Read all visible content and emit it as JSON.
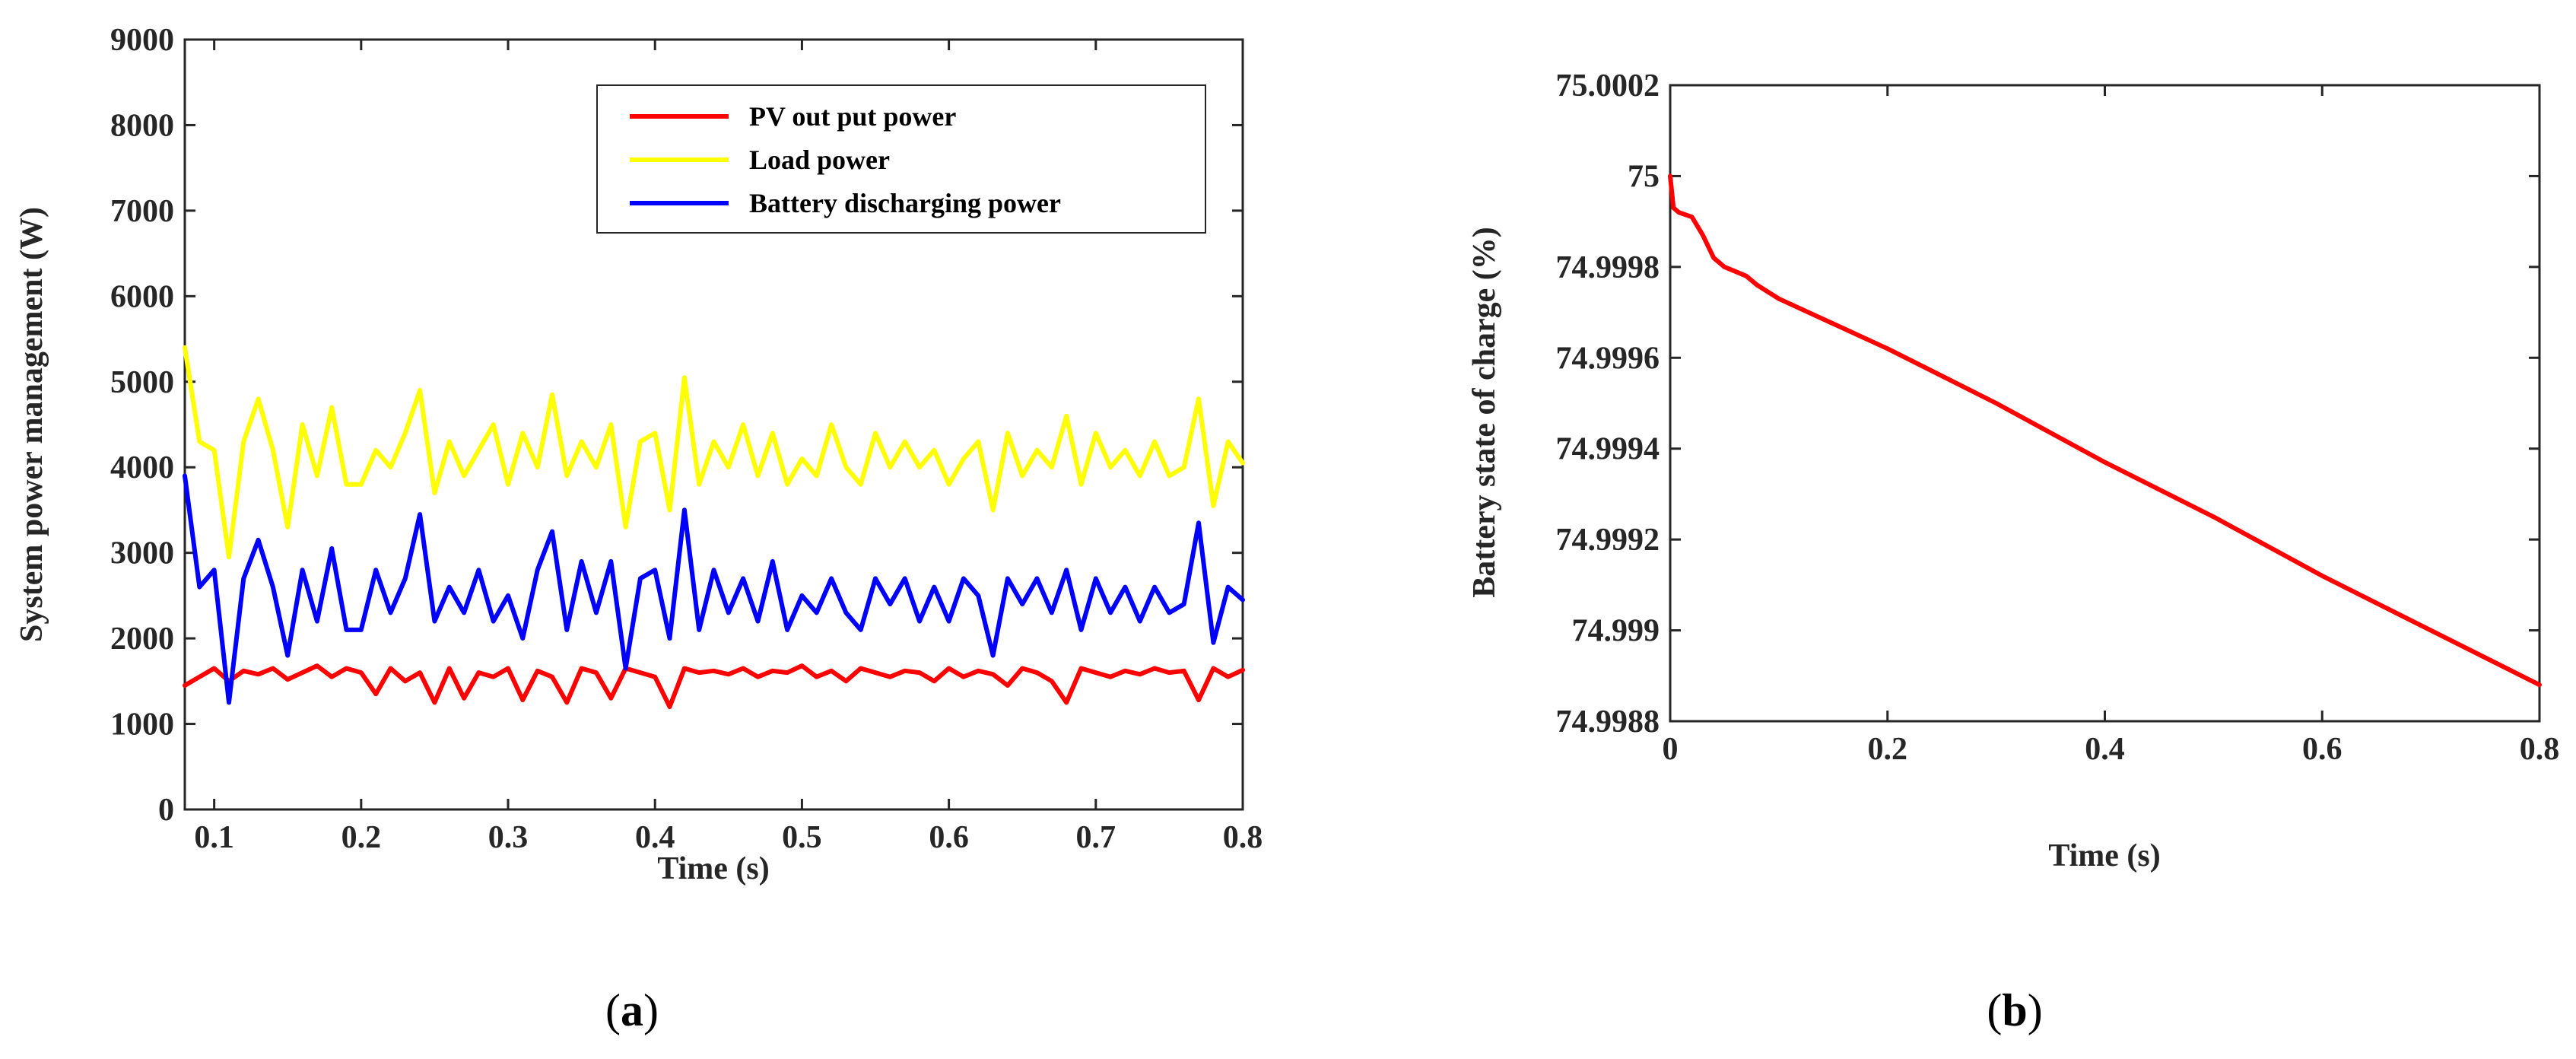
{
  "chart_data": [
    {
      "type": "line",
      "panel": "a",
      "caption_open": "(",
      "caption_letter": "a",
      "caption_close": ")",
      "xlabel": "Time (s)",
      "ylabel": "System power management (W)",
      "xlim": [
        0.08,
        0.8
      ],
      "ylim": [
        0,
        9000
      ],
      "x_ticks": [
        0.1,
        0.2,
        0.3,
        0.4,
        0.5,
        0.6,
        0.7,
        0.8
      ],
      "x_tick_labels": [
        "0.1",
        "0.2",
        "0.3",
        "0.4",
        "0.5",
        "0.6",
        "0.7",
        "0.8"
      ],
      "y_ticks": [
        0,
        1000,
        2000,
        3000,
        4000,
        5000,
        6000,
        7000,
        8000,
        9000
      ],
      "y_tick_labels": [
        "0",
        "1000",
        "2000",
        "3000",
        "4000",
        "5000",
        "6000",
        "7000",
        "8000",
        "9000"
      ],
      "legend_position": "top-right",
      "series": [
        {
          "name": "PV out put power",
          "color": "#ff0000",
          "x": [
            0.08,
            0.09,
            0.1,
            0.11,
            0.12,
            0.13,
            0.14,
            0.15,
            0.16,
            0.17,
            0.18,
            0.19,
            0.2,
            0.21,
            0.22,
            0.23,
            0.24,
            0.25,
            0.26,
            0.27,
            0.28,
            0.29,
            0.3,
            0.31,
            0.32,
            0.33,
            0.34,
            0.35,
            0.36,
            0.37,
            0.38,
            0.39,
            0.4,
            0.41,
            0.42,
            0.43,
            0.44,
            0.45,
            0.46,
            0.47,
            0.48,
            0.49,
            0.5,
            0.51,
            0.52,
            0.53,
            0.54,
            0.55,
            0.56,
            0.57,
            0.58,
            0.59,
            0.6,
            0.61,
            0.62,
            0.63,
            0.64,
            0.65,
            0.66,
            0.67,
            0.68,
            0.69,
            0.7,
            0.71,
            0.72,
            0.73,
            0.74,
            0.75,
            0.76,
            0.77,
            0.78,
            0.79,
            0.8
          ],
          "values": [
            1450,
            1550,
            1650,
            1500,
            1620,
            1580,
            1650,
            1520,
            1600,
            1680,
            1550,
            1650,
            1600,
            1350,
            1650,
            1500,
            1600,
            1250,
            1650,
            1300,
            1600,
            1550,
            1650,
            1280,
            1620,
            1550,
            1250,
            1650,
            1600,
            1300,
            1650,
            1600,
            1550,
            1200,
            1650,
            1600,
            1620,
            1580,
            1650,
            1550,
            1620,
            1600,
            1680,
            1550,
            1620,
            1500,
            1650,
            1600,
            1550,
            1620,
            1600,
            1500,
            1650,
            1550,
            1620,
            1580,
            1450,
            1650,
            1600,
            1500,
            1250,
            1650,
            1600,
            1550,
            1620,
            1580,
            1650,
            1600,
            1620,
            1280,
            1650,
            1550,
            1630
          ]
        },
        {
          "name": "Load power",
          "color": "#ffff00",
          "x": [
            0.08,
            0.09,
            0.1,
            0.11,
            0.12,
            0.13,
            0.14,
            0.15,
            0.16,
            0.17,
            0.18,
            0.19,
            0.2,
            0.21,
            0.22,
            0.23,
            0.24,
            0.25,
            0.26,
            0.27,
            0.28,
            0.29,
            0.3,
            0.31,
            0.32,
            0.33,
            0.34,
            0.35,
            0.36,
            0.37,
            0.38,
            0.39,
            0.4,
            0.41,
            0.42,
            0.43,
            0.44,
            0.45,
            0.46,
            0.47,
            0.48,
            0.49,
            0.5,
            0.51,
            0.52,
            0.53,
            0.54,
            0.55,
            0.56,
            0.57,
            0.58,
            0.59,
            0.6,
            0.61,
            0.62,
            0.63,
            0.64,
            0.65,
            0.66,
            0.67,
            0.68,
            0.69,
            0.7,
            0.71,
            0.72,
            0.73,
            0.74,
            0.75,
            0.76,
            0.77,
            0.78,
            0.79,
            0.8
          ],
          "values": [
            5400,
            4300,
            4200,
            2950,
            4300,
            4800,
            4200,
            3300,
            4500,
            3900,
            4700,
            3800,
            3800,
            4200,
            4000,
            4400,
            4900,
            3700,
            4300,
            3900,
            4200,
            4500,
            3800,
            4400,
            4000,
            4850,
            3900,
            4300,
            4000,
            4500,
            3300,
            4300,
            4400,
            3500,
            5050,
            3800,
            4300,
            4000,
            4500,
            3900,
            4400,
            3800,
            4100,
            3900,
            4500,
            4000,
            3800,
            4400,
            4000,
            4300,
            4000,
            4200,
            3800,
            4100,
            4300,
            3500,
            4400,
            3900,
            4200,
            4000,
            4600,
            3800,
            4400,
            4000,
            4200,
            3900,
            4300,
            3900,
            4000,
            4800,
            3550,
            4300,
            4050
          ]
        },
        {
          "name": "Battery discharging power",
          "color": "#0000ff",
          "x": [
            0.08,
            0.09,
            0.1,
            0.11,
            0.12,
            0.13,
            0.14,
            0.15,
            0.16,
            0.17,
            0.18,
            0.19,
            0.2,
            0.21,
            0.22,
            0.23,
            0.24,
            0.25,
            0.26,
            0.27,
            0.28,
            0.29,
            0.3,
            0.31,
            0.32,
            0.33,
            0.34,
            0.35,
            0.36,
            0.37,
            0.38,
            0.39,
            0.4,
            0.41,
            0.42,
            0.43,
            0.44,
            0.45,
            0.46,
            0.47,
            0.48,
            0.49,
            0.5,
            0.51,
            0.52,
            0.53,
            0.54,
            0.55,
            0.56,
            0.57,
            0.58,
            0.59,
            0.6,
            0.61,
            0.62,
            0.63,
            0.64,
            0.65,
            0.66,
            0.67,
            0.68,
            0.69,
            0.7,
            0.71,
            0.72,
            0.73,
            0.74,
            0.75,
            0.76,
            0.77,
            0.78,
            0.79,
            0.8
          ],
          "values": [
            3900,
            2600,
            2800,
            1250,
            2700,
            3150,
            2600,
            1800,
            2800,
            2200,
            3050,
            2100,
            2100,
            2800,
            2300,
            2700,
            3450,
            2200,
            2600,
            2300,
            2800,
            2200,
            2500,
            2000,
            2800,
            3250,
            2100,
            2900,
            2300,
            2900,
            1650,
            2700,
            2800,
            2000,
            3500,
            2100,
            2800,
            2300,
            2700,
            2200,
            2900,
            2100,
            2500,
            2300,
            2700,
            2300,
            2100,
            2700,
            2400,
            2700,
            2200,
            2600,
            2200,
            2700,
            2500,
            1800,
            2700,
            2400,
            2700,
            2300,
            2800,
            2100,
            2700,
            2300,
            2600,
            2200,
            2600,
            2300,
            2400,
            3350,
            1950,
            2600,
            2450
          ]
        }
      ]
    },
    {
      "type": "line",
      "panel": "b",
      "caption_open": "(",
      "caption_letter": "b",
      "caption_close": ")",
      "xlabel": "Time (s)",
      "ylabel": "Battery state of charge (%)",
      "xlim": [
        0,
        0.8
      ],
      "ylim": [
        74.9988,
        75.0002
      ],
      "x_ticks": [
        0,
        0.2,
        0.4,
        0.6,
        0.8
      ],
      "x_tick_labels": [
        "0",
        "0.2",
        "0.4",
        "0.6",
        "0.8"
      ],
      "y_ticks": [
        74.9988,
        74.999,
        74.9992,
        74.9994,
        74.9996,
        74.9998,
        75.0,
        75.0002
      ],
      "y_tick_labels": [
        "74.9988",
        "74.999",
        "74.9992",
        "74.9994",
        "74.9996",
        "74.9998",
        "75",
        "75.0002"
      ],
      "series": [
        {
          "name": "Battery state of charge",
          "color": "#ff0000",
          "x": [
            0,
            0.003,
            0.008,
            0.02,
            0.03,
            0.04,
            0.05,
            0.06,
            0.07,
            0.08,
            0.1,
            0.2,
            0.3,
            0.4,
            0.5,
            0.6,
            0.7,
            0.8
          ],
          "values": [
            75.0,
            74.99993,
            74.99992,
            74.99991,
            74.99987,
            74.99982,
            74.9998,
            74.99979,
            74.99978,
            74.99976,
            74.99973,
            74.99962,
            74.9995,
            74.99937,
            74.99925,
            74.99912,
            74.999,
            74.99888
          ]
        }
      ]
    }
  ]
}
